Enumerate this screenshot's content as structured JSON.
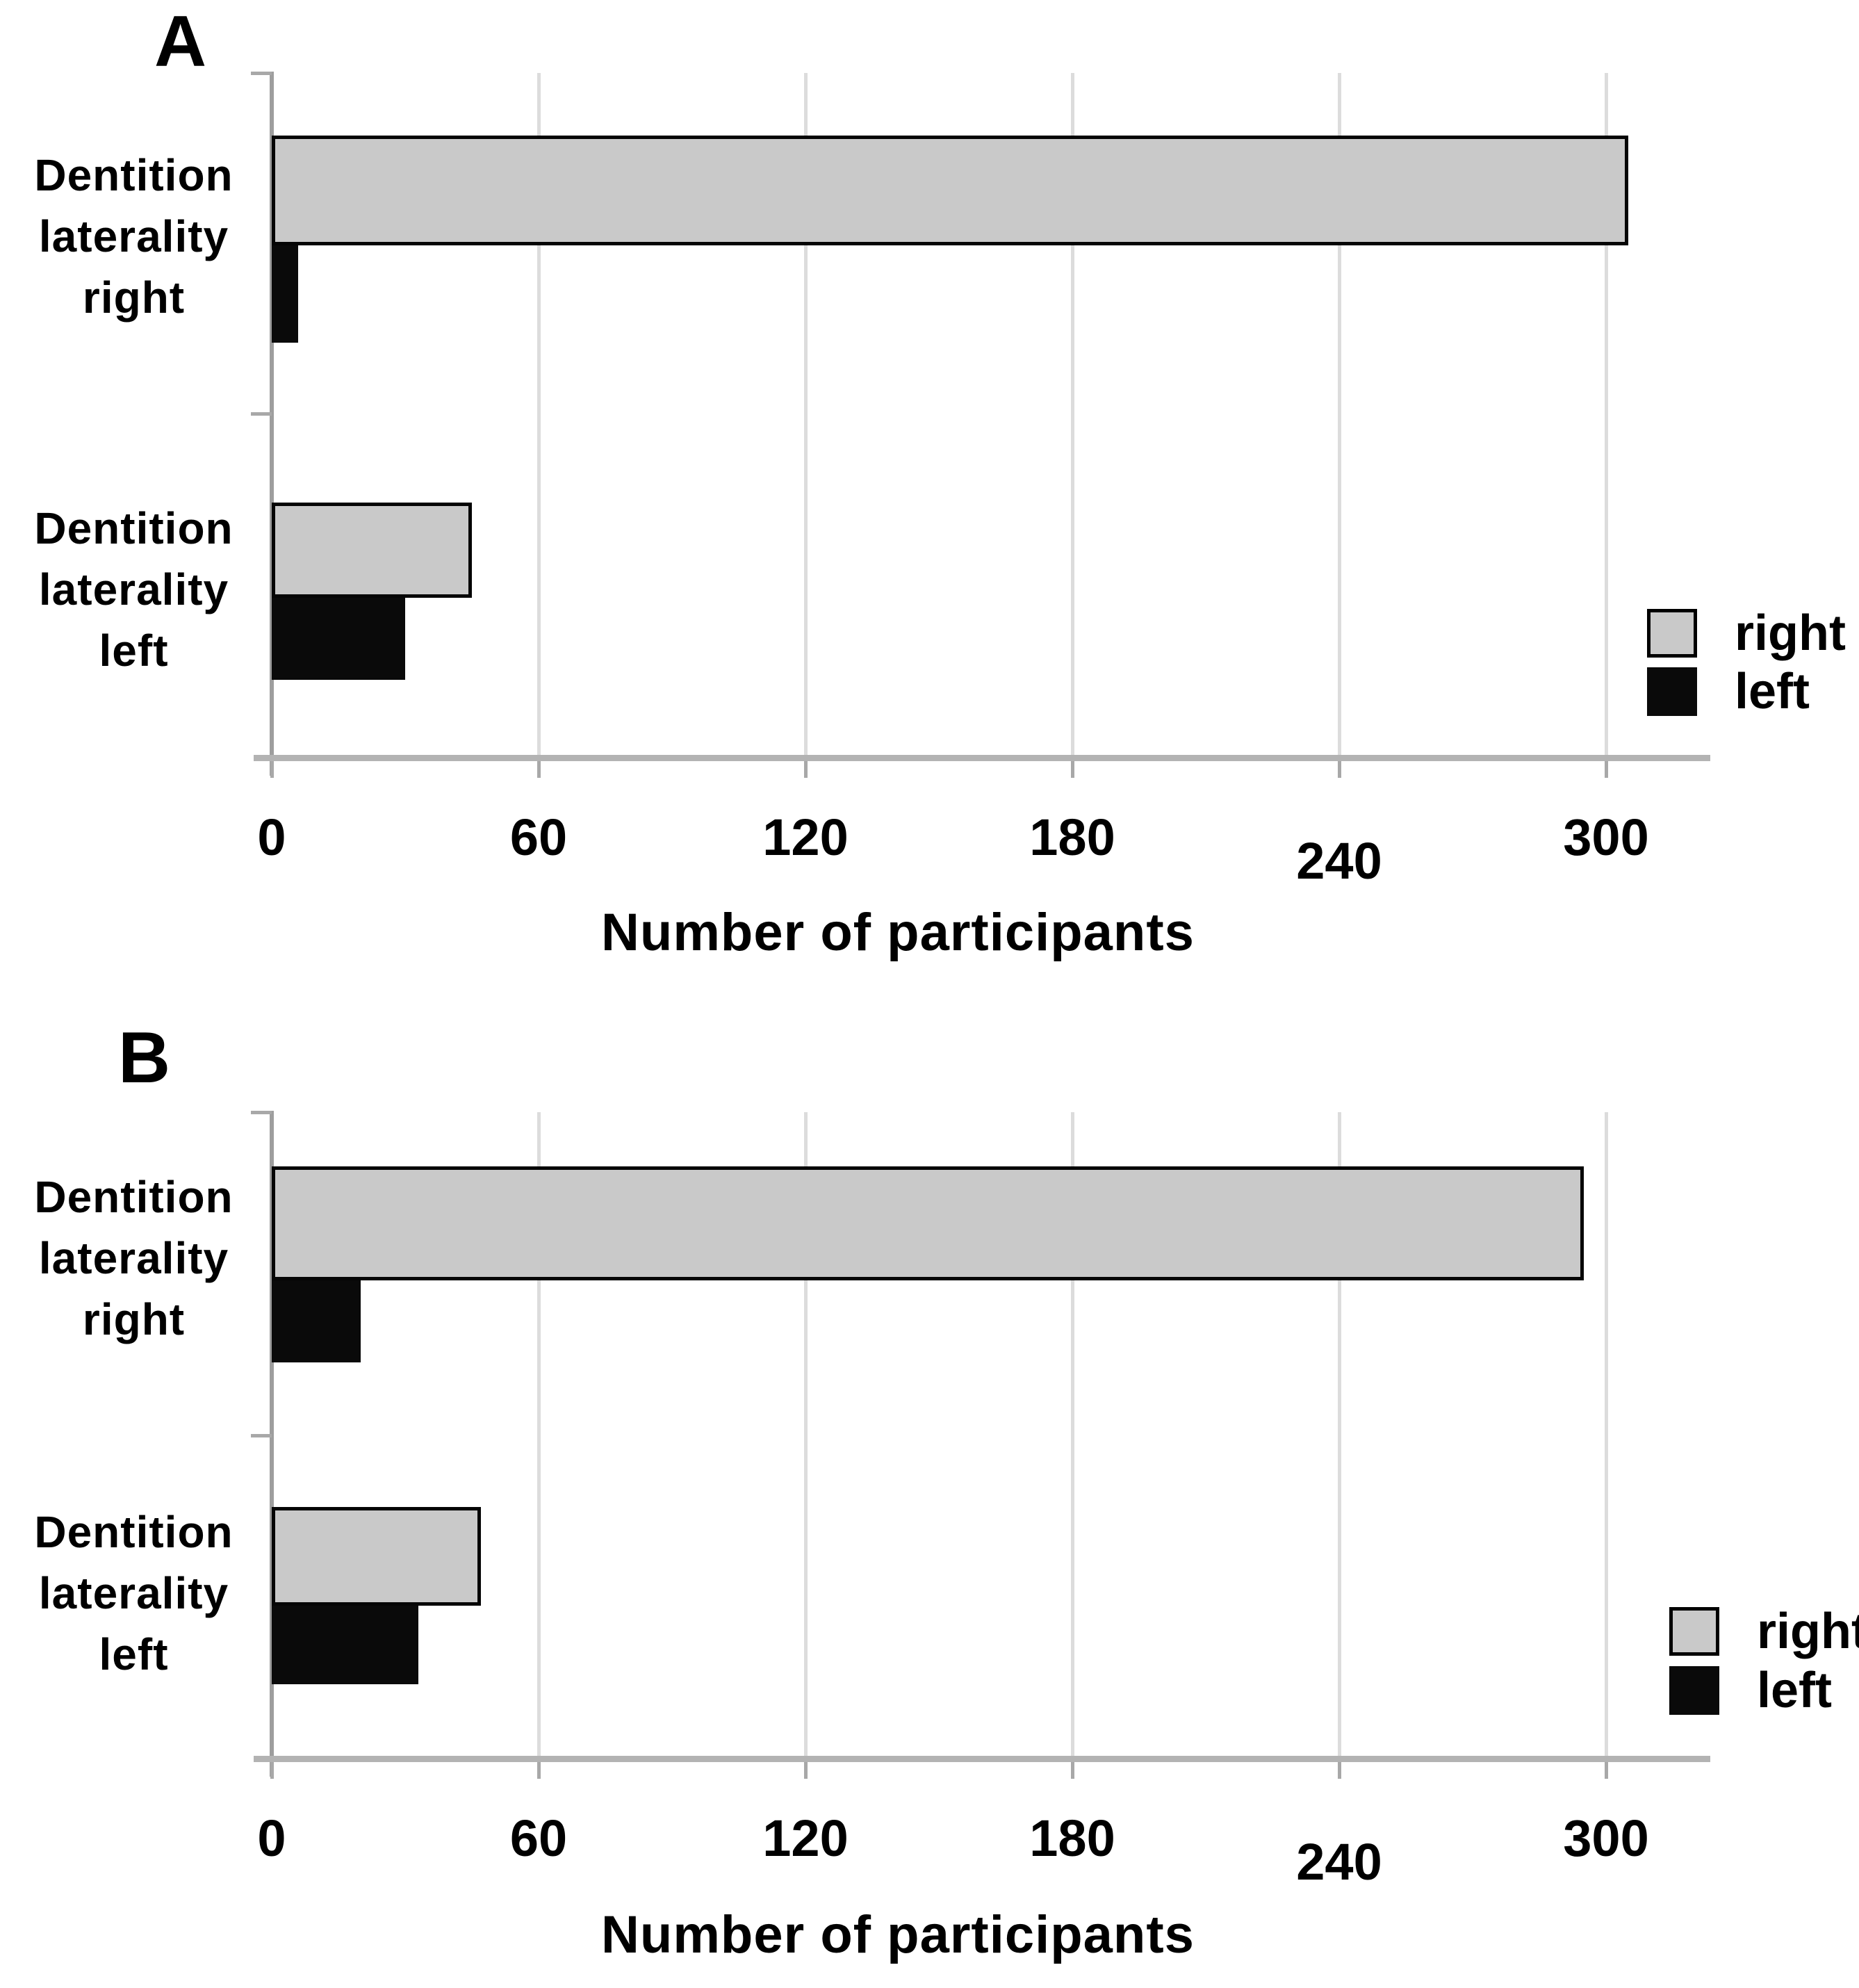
{
  "figure": {
    "background": "#ffffff",
    "panels": [
      {
        "panel_label": "A",
        "categories": [
          {
            "label_lines": [
              "Dentition",
              "laterality",
              "right"
            ]
          },
          {
            "label_lines": [
              "Dentition",
              "laterality",
              "left"
            ]
          }
        ]
      },
      {
        "panel_label": "B",
        "categories": [
          {
            "label_lines": [
              "Dentition",
              "laterality",
              "right"
            ]
          },
          {
            "label_lines": [
              "Dentition",
              "laterality",
              "left"
            ]
          }
        ]
      }
    ],
    "x_axis": {
      "title": "Number of participants",
      "tick_labels": [
        "0",
        "60",
        "120",
        "180",
        "240",
        "300"
      ],
      "tick_values": [
        0,
        60,
        120,
        180,
        240,
        300
      ]
    },
    "legend": {
      "items": [
        {
          "label": "right",
          "swatch_color": "#c9c9c9",
          "swatch_border": "#000000"
        },
        {
          "label": "left",
          "swatch_color": "#0a0a0a",
          "swatch_border": "#0a0a0a"
        }
      ]
    },
    "colors": {
      "bar_right_fill": "#c9c9c9",
      "bar_left_fill": "#0a0a0a",
      "bar_border": "#050505",
      "gridline": "#dcdcdc",
      "value_axis_line": "#b3b3b3",
      "category_axis_line": "#9e9e9e",
      "tick": "#a8a8a8",
      "text": "#000000",
      "background": "#ffffff"
    }
  },
  "chart_data": [
    {
      "type": "bar",
      "orientation": "horizontal",
      "panel": "A",
      "categories": [
        "Dentition laterality right",
        "Dentition laterality left"
      ],
      "series": [
        {
          "name": "right",
          "color": "#c9c9c9",
          "values": [
            305,
            45
          ]
        },
        {
          "name": "left",
          "color": "#0a0a0a",
          "values": [
            6,
            30
          ]
        }
      ],
      "xlabel": "Number of participants",
      "xlim": [
        0,
        323
      ],
      "xticks": [
        0,
        60,
        120,
        180,
        240,
        300
      ],
      "grid": true,
      "legend_position": "right"
    },
    {
      "type": "bar",
      "orientation": "horizontal",
      "panel": "B",
      "categories": [
        "Dentition laterality right",
        "Dentition laterality left"
      ],
      "series": [
        {
          "name": "right",
          "color": "#c9c9c9",
          "values": [
            295,
            47
          ]
        },
        {
          "name": "left",
          "color": "#0a0a0a",
          "values": [
            20,
            33
          ]
        }
      ],
      "xlabel": "Number of participants",
      "xlim": [
        0,
        323
      ],
      "xticks": [
        0,
        60,
        120,
        180,
        240,
        300
      ],
      "grid": true,
      "legend_position": "right"
    }
  ]
}
